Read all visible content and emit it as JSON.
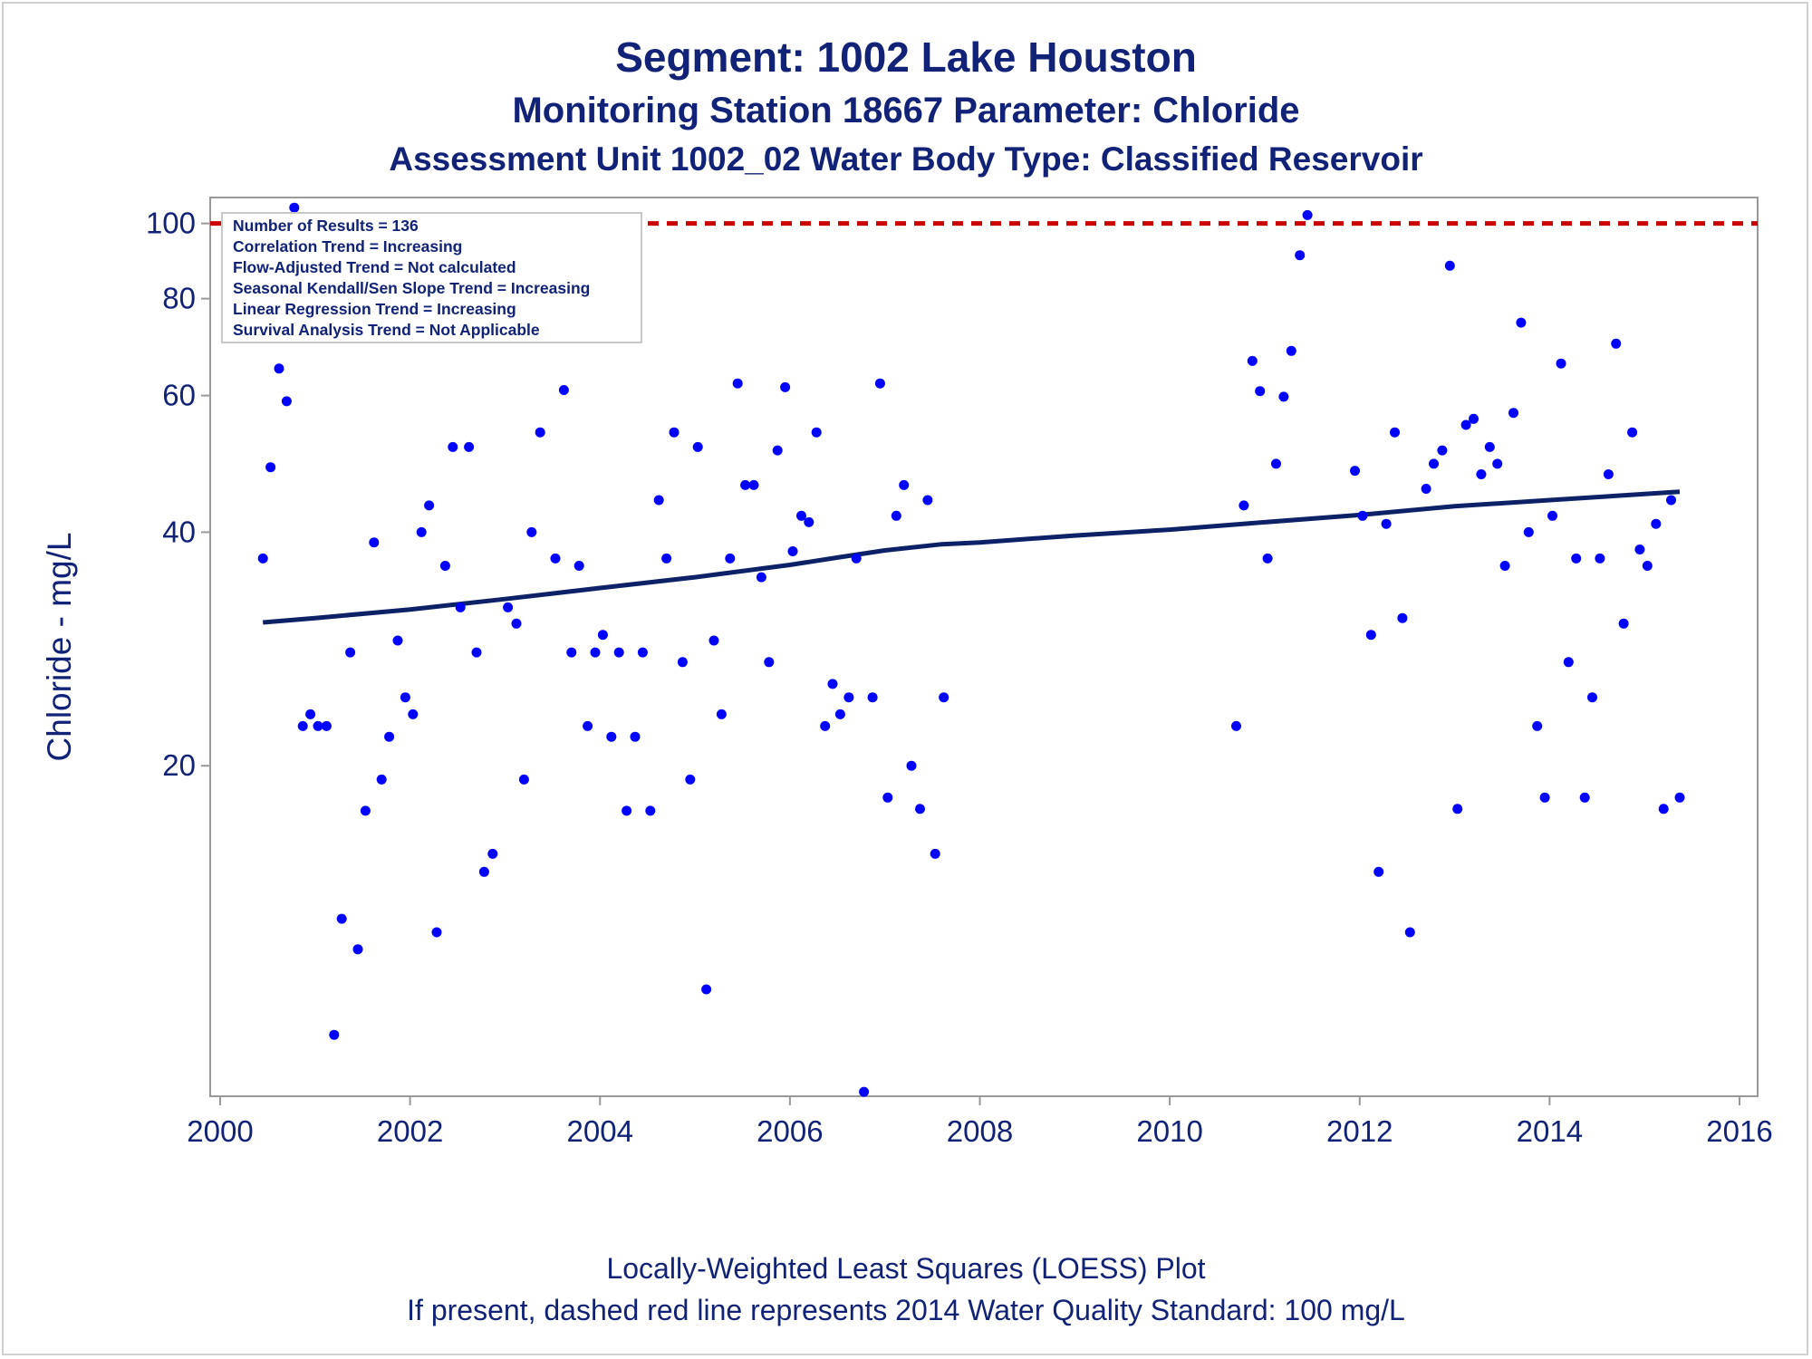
{
  "titles": {
    "line1": "Segment: 1002  Lake Houston",
    "line2": "Monitoring Station 18667 Parameter: Chloride",
    "line3": "Assessment Unit 1002_02   Water Body Type: Classified Reservoir"
  },
  "footer": {
    "line1": "Locally-Weighted Least Squares (LOESS) Plot",
    "line2": "If present, dashed red line represents 2014 Water Quality Standard: 100    mg/L"
  },
  "stats_box": [
    "Number of Results = 136",
    "Correlation Trend = Increasing",
    "Flow-Adjusted Trend = Not calculated",
    "Seasonal Kendall/Sen Slope Trend = Increasing",
    "Linear Regression Trend = Increasing",
    "Survival Analysis Trend = Not Applicable"
  ],
  "colors": {
    "text": "#112277",
    "points": "#0000ff",
    "loess_line": "#0d2266",
    "standard_line": "#cc0000",
    "axis_frame": "#999999"
  },
  "chart_data": {
    "type": "scatter",
    "ylabel": "Chloride - mg/L",
    "xlabel": "",
    "y_scale": "log",
    "xlim": [
      2000,
      2016
    ],
    "ylim": [
      7.5,
      108
    ],
    "x_ticks": [
      2000,
      2002,
      2004,
      2006,
      2008,
      2010,
      2012,
      2014,
      2016
    ],
    "y_ticks": [
      20,
      40,
      60,
      80,
      100
    ],
    "standard_line": {
      "value": 100,
      "style": "dashed",
      "color": "#cc0000"
    },
    "points": [
      [
        2000.45,
        37.0
      ],
      [
        2000.53,
        48.5
      ],
      [
        2000.62,
        65.0
      ],
      [
        2000.7,
        59.0
      ],
      [
        2000.78,
        104.8
      ],
      [
        2000.87,
        22.5
      ],
      [
        2000.95,
        23.3
      ],
      [
        2001.03,
        22.5
      ],
      [
        2001.12,
        22.5
      ],
      [
        2001.2,
        9.0
      ],
      [
        2001.28,
        12.7
      ],
      [
        2001.37,
        28.0
      ],
      [
        2001.45,
        11.6
      ],
      [
        2001.53,
        17.5
      ],
      [
        2001.62,
        38.8
      ],
      [
        2001.7,
        19.2
      ],
      [
        2001.78,
        21.8
      ],
      [
        2001.87,
        29.0
      ],
      [
        2001.95,
        24.5
      ],
      [
        2002.03,
        23.3
      ],
      [
        2002.12,
        40.0
      ],
      [
        2002.2,
        43.3
      ],
      [
        2002.28,
        12.2
      ],
      [
        2002.37,
        36.2
      ],
      [
        2002.45,
        51.5
      ],
      [
        2002.53,
        32.0
      ],
      [
        2002.62,
        51.5
      ],
      [
        2002.7,
        28.0
      ],
      [
        2002.78,
        14.6
      ],
      [
        2002.87,
        15.4
      ],
      [
        2003.03,
        32.0
      ],
      [
        2003.12,
        30.5
      ],
      [
        2003.2,
        19.2
      ],
      [
        2003.28,
        40.0
      ],
      [
        2003.37,
        53.8
      ],
      [
        2003.53,
        37.0
      ],
      [
        2003.62,
        61.0
      ],
      [
        2003.7,
        28.0
      ],
      [
        2003.78,
        36.2
      ],
      [
        2003.87,
        22.5
      ],
      [
        2003.95,
        28.0
      ],
      [
        2004.03,
        29.5
      ],
      [
        2004.12,
        21.8
      ],
      [
        2004.2,
        28.0
      ],
      [
        2004.28,
        17.5
      ],
      [
        2004.37,
        21.8
      ],
      [
        2004.45,
        28.0
      ],
      [
        2004.53,
        17.5
      ],
      [
        2004.62,
        44.0
      ],
      [
        2004.7,
        37.0
      ],
      [
        2004.78,
        53.8
      ],
      [
        2004.87,
        27.2
      ],
      [
        2004.95,
        19.2
      ],
      [
        2005.03,
        51.5
      ],
      [
        2005.12,
        10.3
      ],
      [
        2005.2,
        29.0
      ],
      [
        2005.28,
        23.3
      ],
      [
        2005.37,
        37.0
      ],
      [
        2005.45,
        62.2
      ],
      [
        2005.53,
        46.0
      ],
      [
        2005.62,
        46.0
      ],
      [
        2005.7,
        35.0
      ],
      [
        2005.78,
        27.2
      ],
      [
        2005.87,
        51.0
      ],
      [
        2005.95,
        61.5
      ],
      [
        2006.03,
        37.8
      ],
      [
        2006.12,
        42.0
      ],
      [
        2006.2,
        41.2
      ],
      [
        2006.28,
        53.8
      ],
      [
        2006.37,
        22.5
      ],
      [
        2006.45,
        25.5
      ],
      [
        2006.53,
        23.3
      ],
      [
        2006.62,
        24.5
      ],
      [
        2006.7,
        37.0
      ],
      [
        2006.78,
        7.6
      ],
      [
        2006.87,
        24.5
      ],
      [
        2006.95,
        62.2
      ],
      [
        2007.03,
        18.2
      ],
      [
        2007.12,
        42.0
      ],
      [
        2007.2,
        46.0
      ],
      [
        2007.28,
        20.0
      ],
      [
        2007.37,
        17.6
      ],
      [
        2007.45,
        44.0
      ],
      [
        2007.53,
        15.4
      ],
      [
        2007.62,
        24.5
      ],
      [
        2010.7,
        22.5
      ],
      [
        2010.78,
        43.3
      ],
      [
        2010.87,
        66.5
      ],
      [
        2010.95,
        60.8
      ],
      [
        2011.03,
        37.0
      ],
      [
        2011.12,
        49.0
      ],
      [
        2011.2,
        59.8
      ],
      [
        2011.28,
        68.5
      ],
      [
        2011.37,
        91.0
      ],
      [
        2011.45,
        102.5
      ],
      [
        2011.95,
        48.0
      ],
      [
        2012.03,
        42.0
      ],
      [
        2012.12,
        29.5
      ],
      [
        2012.2,
        14.6
      ],
      [
        2012.28,
        41.0
      ],
      [
        2012.37,
        53.8
      ],
      [
        2012.45,
        31.0
      ],
      [
        2012.53,
        12.2
      ],
      [
        2012.7,
        45.5
      ],
      [
        2012.78,
        49.0
      ],
      [
        2012.87,
        51.0
      ],
      [
        2012.95,
        88.2
      ],
      [
        2013.03,
        17.6
      ],
      [
        2013.12,
        55.0
      ],
      [
        2013.2,
        56.0
      ],
      [
        2013.28,
        47.5
      ],
      [
        2013.37,
        51.5
      ],
      [
        2013.45,
        49.0
      ],
      [
        2013.53,
        36.2
      ],
      [
        2013.62,
        57.0
      ],
      [
        2013.7,
        74.5
      ],
      [
        2013.78,
        40.0
      ],
      [
        2013.87,
        22.5
      ],
      [
        2013.95,
        18.2
      ],
      [
        2014.03,
        42.0
      ],
      [
        2014.12,
        66.0
      ],
      [
        2014.2,
        27.2
      ],
      [
        2014.28,
        37.0
      ],
      [
        2014.37,
        18.2
      ],
      [
        2014.45,
        24.5
      ],
      [
        2014.53,
        37.0
      ],
      [
        2014.62,
        47.5
      ],
      [
        2014.7,
        70.0
      ],
      [
        2014.78,
        30.5
      ],
      [
        2014.87,
        53.8
      ],
      [
        2014.95,
        38.0
      ],
      [
        2015.03,
        36.2
      ],
      [
        2015.12,
        41.0
      ],
      [
        2015.2,
        17.6
      ],
      [
        2015.28,
        44.0
      ],
      [
        2015.37,
        18.2
      ]
    ],
    "loess": [
      [
        2000.45,
        30.6
      ],
      [
        2001.0,
        31.0
      ],
      [
        2002.0,
        31.8
      ],
      [
        2003.0,
        32.8
      ],
      [
        2004.0,
        33.9
      ],
      [
        2005.0,
        35.0
      ],
      [
        2006.0,
        36.3
      ],
      [
        2006.5,
        37.1
      ],
      [
        2007.0,
        37.9
      ],
      [
        2007.6,
        38.6
      ],
      [
        2008.0,
        38.8
      ],
      [
        2009.0,
        39.6
      ],
      [
        2010.0,
        40.3
      ],
      [
        2011.0,
        41.2
      ],
      [
        2012.0,
        42.1
      ],
      [
        2013.0,
        43.2
      ],
      [
        2014.0,
        44.0
      ],
      [
        2015.0,
        44.8
      ],
      [
        2015.37,
        45.1
      ]
    ]
  }
}
